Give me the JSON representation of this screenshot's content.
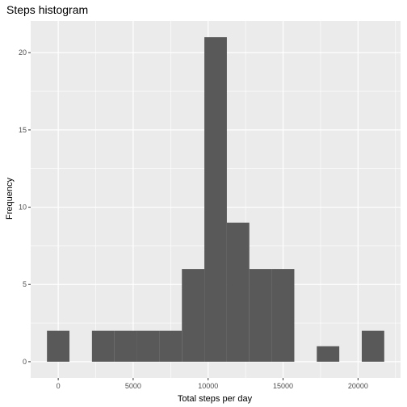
{
  "chart_data": {
    "type": "bar",
    "title": "Steps histogram",
    "xlabel": "Total steps per day",
    "ylabel": "Frequency",
    "bin_width": 1500,
    "bins": [
      {
        "x0": -750,
        "x1": 750,
        "count": 2
      },
      {
        "x0": 750,
        "x1": 2250,
        "count": 0
      },
      {
        "x0": 2250,
        "x1": 3750,
        "count": 2
      },
      {
        "x0": 3750,
        "x1": 5250,
        "count": 2
      },
      {
        "x0": 5250,
        "x1": 6750,
        "count": 2
      },
      {
        "x0": 6750,
        "x1": 8250,
        "count": 2
      },
      {
        "x0": 8250,
        "x1": 9750,
        "count": 6
      },
      {
        "x0": 9750,
        "x1": 11250,
        "count": 21
      },
      {
        "x0": 11250,
        "x1": 12750,
        "count": 9
      },
      {
        "x0": 12750,
        "x1": 14250,
        "count": 6
      },
      {
        "x0": 14250,
        "x1": 15750,
        "count": 6
      },
      {
        "x0": 15750,
        "x1": 17250,
        "count": 0
      },
      {
        "x0": 17250,
        "x1": 18750,
        "count": 1
      },
      {
        "x0": 18750,
        "x1": 20250,
        "count": 0
      },
      {
        "x0": 20250,
        "x1": 21750,
        "count": 2
      }
    ],
    "xlim": [
      -1837,
      22837
    ],
    "ylim": [
      -1.05,
      22.05
    ],
    "x_ticks": [
      0,
      5000,
      10000,
      15000,
      20000
    ],
    "x_minor_ticks": [
      -2500,
      2500,
      7500,
      12500,
      17500,
      22500
    ],
    "y_ticks": [
      0,
      5,
      10,
      15,
      20
    ],
    "y_minor_ticks": [
      2.5,
      7.5,
      12.5,
      17.5
    ],
    "grid": true,
    "colors": {
      "panel": "#ebebeb",
      "grid": "#ffffff",
      "bar": "#595959",
      "tick_label": "#4d4d4d",
      "tick_mark": "#333333"
    }
  }
}
